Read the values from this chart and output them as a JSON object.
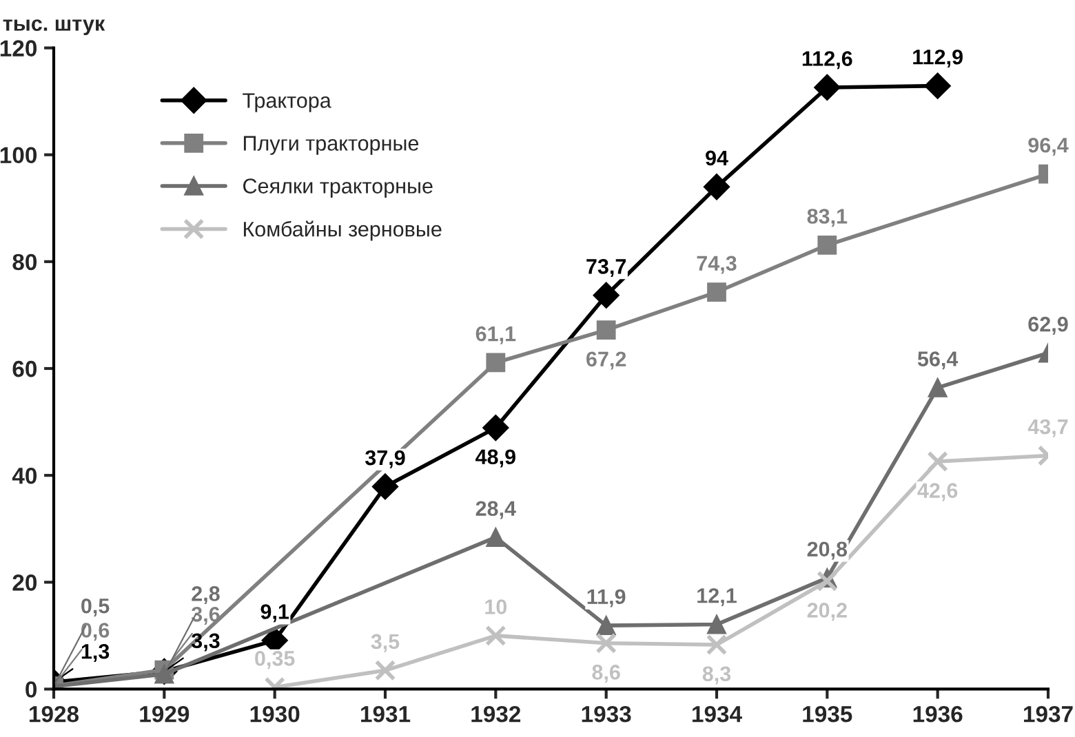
{
  "chart_data": {
    "type": "line",
    "ylabel": "тыс. штук",
    "xlim": [
      1928,
      1937
    ],
    "xticks": [
      1928,
      1929,
      1930,
      1931,
      1932,
      1933,
      1934,
      1935,
      1936,
      1937
    ],
    "ylim": [
      0,
      120
    ],
    "yticks": [
      0,
      20,
      40,
      60,
      80,
      100,
      120
    ],
    "grid": false,
    "legend": "top left",
    "series": [
      {
        "name": "Трактора",
        "color": "#000000",
        "marker": "diamond",
        "x": [
          1928,
          1929,
          1930,
          1931,
          1932,
          1933,
          1934,
          1935,
          1936
        ],
        "values": [
          1.3,
          3.3,
          9.1,
          37.9,
          48.9,
          73.7,
          94,
          112.6,
          112.9
        ],
        "value_labels": [
          "1,3",
          "3,3",
          "9,1",
          "37,9",
          "48,9",
          "73,7",
          "94",
          "112,6",
          "112,9"
        ]
      },
      {
        "name": "Плуги тракторные",
        "color": "#808080",
        "marker": "square",
        "x": [
          1928,
          1929,
          1932,
          1933,
          1934,
          1935,
          1937
        ],
        "values": [
          0.6,
          3.6,
          61.1,
          67.2,
          74.3,
          83.1,
          96.4
        ],
        "value_labels": [
          "0,6",
          "3,6",
          "61,1",
          "67,2",
          "74,3",
          "83,1",
          "96,4"
        ]
      },
      {
        "name": "Сеялки тракторные",
        "color": "#6e6e6e",
        "marker": "triangle",
        "x": [
          1928,
          1929,
          1932,
          1933,
          1934,
          1935,
          1936,
          1937
        ],
        "values": [
          0.5,
          2.8,
          28.4,
          11.9,
          12.1,
          20.8,
          56.4,
          62.9
        ],
        "value_labels": [
          "0,5",
          "2,8",
          "28,4",
          "11,9",
          "12,1",
          "20,8",
          "56,4",
          "62,9"
        ]
      },
      {
        "name": "Комбайны зерновые",
        "color": "#c0c0c0",
        "marker": "cross",
        "x": [
          1930,
          1931,
          1932,
          1933,
          1934,
          1935,
          1936,
          1937
        ],
        "values": [
          0.35,
          3.5,
          10,
          8.6,
          8.3,
          20.2,
          42.6,
          43.7
        ],
        "value_labels": [
          "0,35",
          "3,5",
          "10",
          "8,6",
          "8,3",
          "20,2",
          "42,6",
          "43,7"
        ]
      }
    ]
  }
}
